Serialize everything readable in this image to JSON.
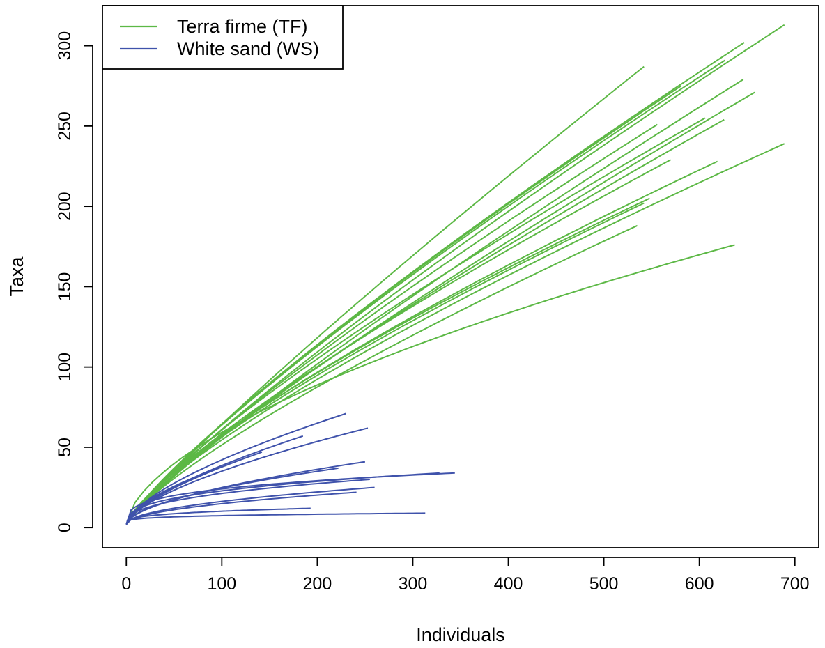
{
  "chart_data": {
    "type": "line",
    "xlabel": "Individuals",
    "ylabel": "Taxa",
    "xlim": [
      -25,
      725
    ],
    "ylim": [
      -12.5,
      325
    ],
    "xticks": [
      0,
      100,
      200,
      300,
      400,
      500,
      600,
      700
    ],
    "yticks": [
      0,
      50,
      100,
      150,
      200,
      250,
      300
    ],
    "legend": {
      "position": "top-left",
      "entries": [
        {
          "label": "Terra firme (TF)",
          "color": "#5cb845"
        },
        {
          "label": "White sand (WS)",
          "color": "#3f52ab"
        }
      ]
    },
    "series": [
      {
        "group": "TF",
        "color": "#5cb845",
        "curves": [
          {
            "end": [
              689,
              313
            ],
            "shape": 0.86
          },
          {
            "end": [
              647,
              302
            ],
            "shape": 0.84
          },
          {
            "end": [
              627,
              291
            ],
            "shape": 0.84
          },
          {
            "end": [
              542,
              287
            ],
            "shape": 0.9
          },
          {
            "end": [
              646,
              279
            ],
            "shape": 0.87
          },
          {
            "end": [
              581,
              275
            ],
            "shape": 0.84
          },
          {
            "end": [
              658,
              271
            ],
            "shape": 0.85
          },
          {
            "end": [
              606,
              255
            ],
            "shape": 0.81
          },
          {
            "end": [
              626,
              254
            ],
            "shape": 0.83
          },
          {
            "end": [
              556,
              251
            ],
            "shape": 0.84
          },
          {
            "end": [
              689,
              239
            ],
            "shape": 0.78
          },
          {
            "end": [
              570,
              229
            ],
            "shape": 0.8
          },
          {
            "end": [
              619,
              228
            ],
            "shape": 0.77
          },
          {
            "end": [
              548,
              205
            ],
            "shape": 0.76
          },
          {
            "end": [
              542,
              202
            ],
            "shape": 0.77
          },
          {
            "end": [
              535,
              188
            ],
            "shape": 0.79
          },
          {
            "end": [
              637,
              176
            ],
            "shape": 0.6
          }
        ]
      },
      {
        "group": "WS",
        "color": "#3f52ab",
        "curves": [
          {
            "end": [
              230,
              71
            ],
            "shape": 0.65
          },
          {
            "end": [
              253,
              62
            ],
            "shape": 0.64
          },
          {
            "end": [
              185,
              57
            ],
            "shape": 0.66
          },
          {
            "end": [
              142,
              47
            ],
            "shape": 0.66
          },
          {
            "end": [
              96,
              37
            ],
            "shape": 0.6
          },
          {
            "end": [
              250,
              41
            ],
            "shape": 0.58
          },
          {
            "end": [
              222,
              37
            ],
            "shape": 0.55
          },
          {
            "end": [
              328,
              34
            ],
            "shape": 0.36
          },
          {
            "end": [
              344,
              34
            ],
            "shape": 0.3
          },
          {
            "end": [
              255,
              30
            ],
            "shape": 0.4
          },
          {
            "end": [
              260,
              25
            ],
            "shape": 0.5
          },
          {
            "end": [
              241,
              22
            ],
            "shape": 0.5
          },
          {
            "end": [
              193,
              12
            ],
            "shape": 0.3
          },
          {
            "end": [
              313,
              9
            ],
            "shape": 0.22
          }
        ]
      }
    ]
  }
}
